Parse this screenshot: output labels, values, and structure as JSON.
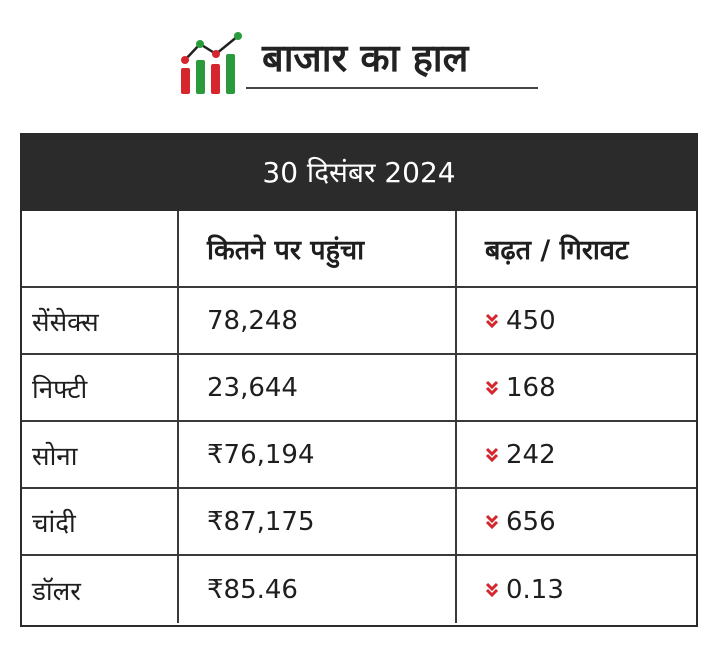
{
  "header": {
    "title": "बाजार का हाल",
    "logo_icon": "market-chart-logo-icon",
    "colors": {
      "red": "#d6262d",
      "green": "#2a9a3a",
      "text": "#222222"
    }
  },
  "table": {
    "date_banner": "30 दिसंबर 2024",
    "columns": [
      "",
      "कितने पर पहुंचा",
      "बढ़त / गिरावट"
    ],
    "rows": [
      {
        "name": "सेंसेक्स",
        "value": "78,248",
        "change": "450",
        "direction": "down"
      },
      {
        "name": "निफ्टी",
        "value": "23,644",
        "change": "168",
        "direction": "down"
      },
      {
        "name": "सोना",
        "value": "₹76,194",
        "change": "242",
        "direction": "down"
      },
      {
        "name": "चांदी",
        "value": "₹87,175",
        "change": "656",
        "direction": "down"
      },
      {
        "name": "डॉलर",
        "value": "₹85.46",
        "change": "0.13",
        "direction": "down"
      }
    ],
    "down_icon": "double-chevron-down-icon",
    "colors": {
      "banner_bg": "#2b2b2b",
      "banner_text": "#ffffff",
      "down_arrow": "#d6262d",
      "border": "#2b2b2b"
    }
  }
}
